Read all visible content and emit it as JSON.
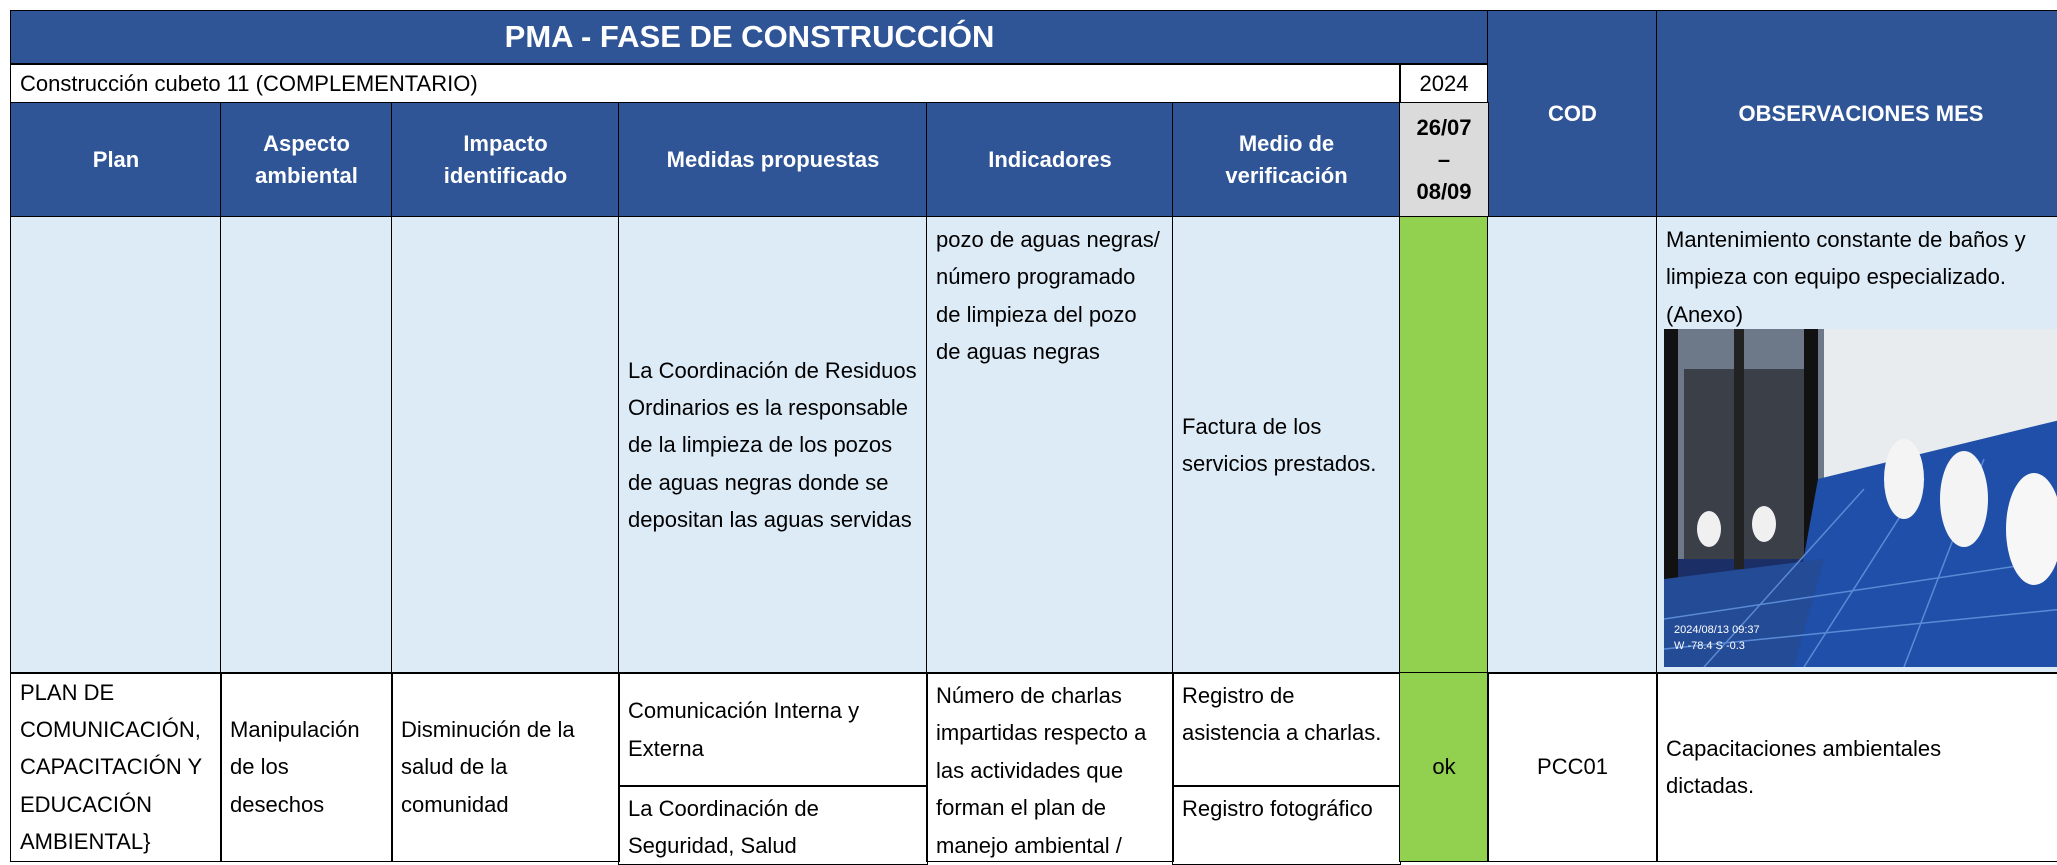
{
  "header": {
    "title": "PMA - FASE DE CONSTRUCCIÓN",
    "project": "Construcción cubeto 11 (COMPLEMENTARIO)",
    "year": "2024",
    "period": [
      "26/07",
      "–",
      "08/09"
    ],
    "columns": [
      "Plan",
      "Aspecto ambiental",
      "Impacto identificado",
      "Medidas propuestas",
      "Indicadores",
      "Medio de verificación"
    ],
    "cod": "COD",
    "observaciones": "OBSERVACIONES MES"
  },
  "rows": [
    {
      "medidas": "La Coordinación de Residuos Ordinarios es la responsable de la limpieza de los pozos de aguas negras donde se depositan las aguas servidas",
      "indicadores": "pozo de aguas negras/ número programado de limpieza del pozo de aguas negras",
      "medio": "Factura de los servicios prestados.",
      "observaciones": "Mantenimiento constante de baños y limpieza con equipo especializado. (Anexo)",
      "photo_stamp": [
        "2024/08/13 09:37",
        "W -78.4 S -0.3"
      ]
    },
    {
      "plan": "PLAN DE COMUNICACIÓN, CAPACITACIÓN Y EDUCACIÓN AMBIENTAL}",
      "aspecto": "Manipulación de los desechos",
      "impacto": "Disminución de la salud de la comunidad",
      "medidas": [
        "Comunicación Interna y Externa",
        "La Coordinación de Seguridad, Salud"
      ],
      "indicadores": "Número de charlas impartidas respecto a las actividades que forman el plan de manejo ambiental /",
      "medio": [
        "Registro de asistencia a charlas.",
        "Registro fotográfico"
      ],
      "status": "ok",
      "cod": "PCC01",
      "observaciones": "Capacitaciones ambientales dictadas."
    }
  ]
}
